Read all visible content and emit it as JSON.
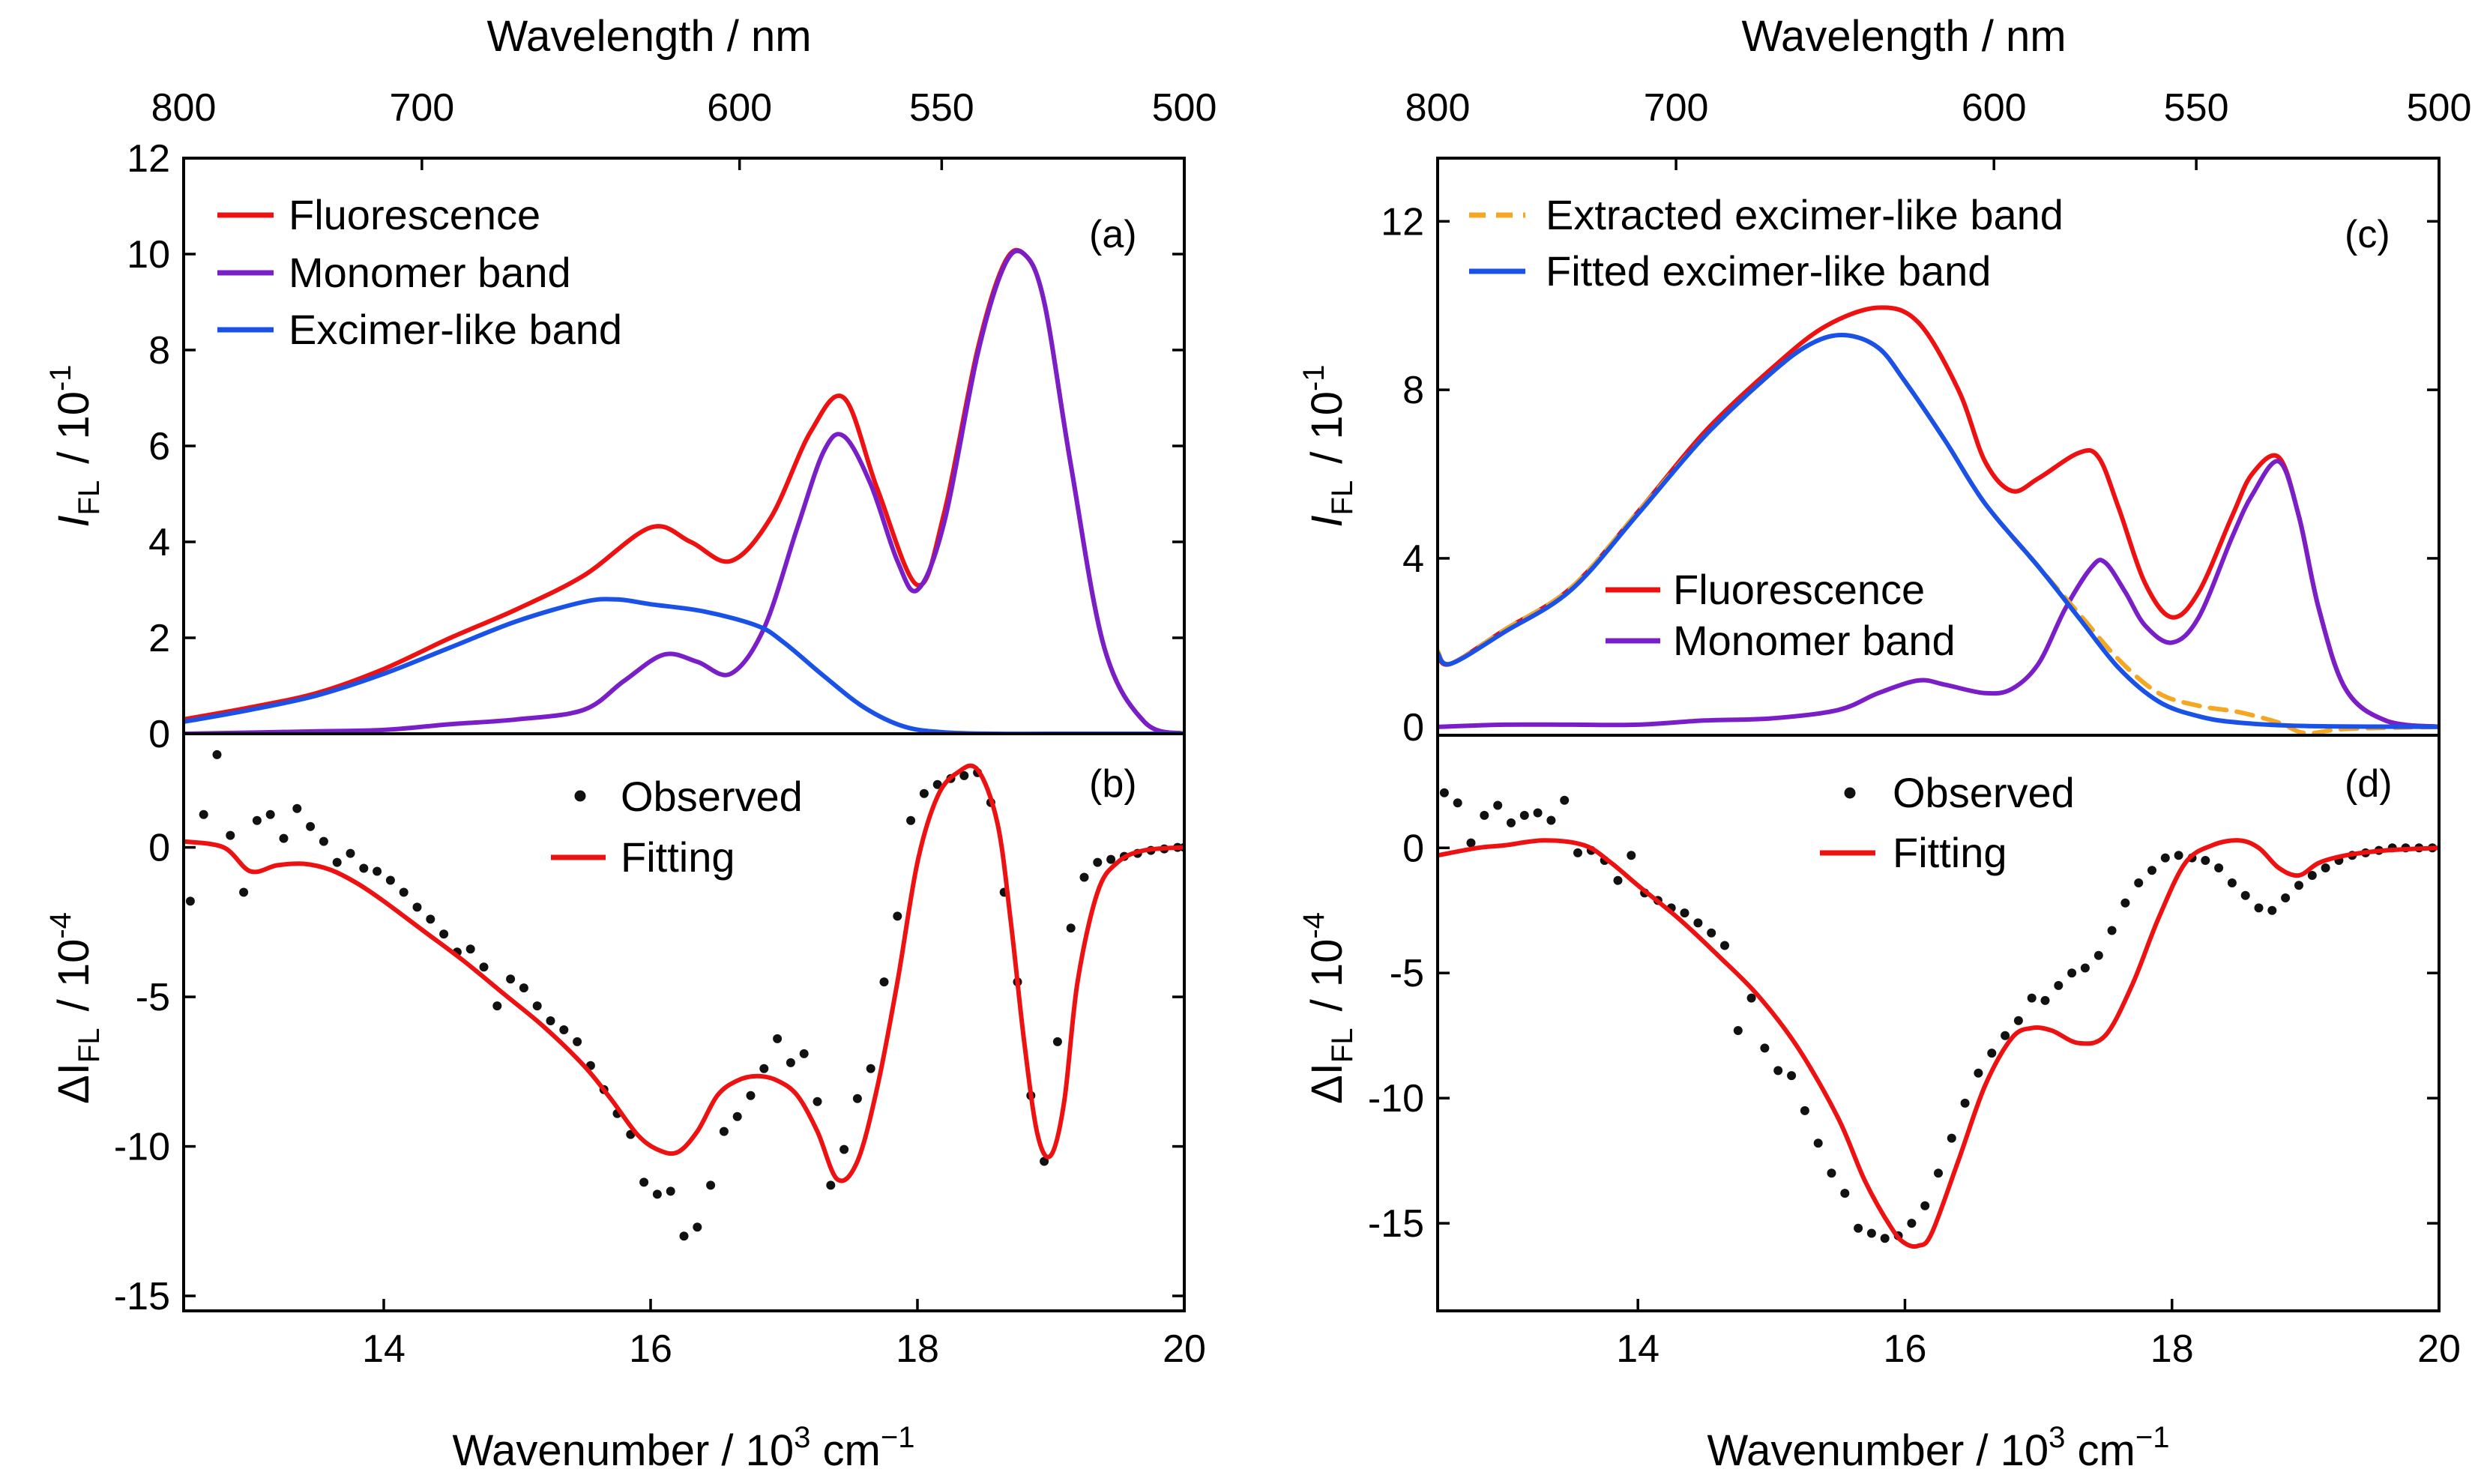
{
  "colors": {
    "fluorescence": "#ee1111",
    "monomer": "#7a1fc8",
    "excimer": "#1a52e8",
    "extracted": "#f5a623",
    "observed": "#111111",
    "fitting": "#ee1111"
  },
  "chart_data": [
    {
      "panel": "a",
      "type": "line",
      "panel_label": "(a)",
      "top_xlabel": "Wavelength / nm",
      "top_ticks": [
        800,
        700,
        600,
        550,
        500
      ],
      "ylabel": "I_FL / 10^-1",
      "ylabel_main": "I",
      "ylabel_sub": "FL",
      "ylabel_unit": "/ 10",
      "ylabel_exp": "-1",
      "xlim": [
        12.5,
        20
      ],
      "ylim": [
        0,
        12
      ],
      "yticks": [
        0,
        2,
        4,
        6,
        8,
        10,
        12
      ],
      "series": [
        {
          "name": "Fluorescence",
          "color": "fluorescence",
          "x": [
            12.5,
            13.0,
            13.5,
            14.0,
            14.5,
            15.0,
            15.5,
            16.0,
            16.3,
            16.6,
            16.9,
            17.2,
            17.45,
            17.7,
            18.0,
            18.2,
            18.45,
            18.65,
            18.8,
            18.95,
            19.15,
            19.4,
            19.7,
            20.0
          ],
          "y": [
            0.3,
            0.55,
            0.85,
            1.35,
            2.0,
            2.6,
            3.3,
            4.3,
            4.0,
            3.6,
            4.5,
            6.3,
            7.0,
            5.1,
            3.1,
            4.6,
            8.0,
            9.8,
            10.0,
            9.0,
            5.6,
            1.8,
            0.25,
            0.0
          ]
        },
        {
          "name": "Monomer band",
          "color": "monomer",
          "x": [
            12.5,
            13.5,
            14.0,
            14.5,
            15.0,
            15.5,
            15.8,
            16.1,
            16.35,
            16.6,
            16.85,
            17.1,
            17.3,
            17.45,
            17.65,
            17.85,
            18.0,
            18.2,
            18.45,
            18.65,
            18.8,
            18.95,
            19.15,
            19.4,
            19.7,
            20.0
          ],
          "y": [
            0.0,
            0.05,
            0.08,
            0.2,
            0.3,
            0.5,
            1.1,
            1.65,
            1.5,
            1.25,
            2.2,
            4.3,
            5.9,
            6.2,
            5.2,
            3.6,
            3.0,
            4.4,
            7.9,
            9.75,
            10.0,
            9.0,
            5.6,
            1.8,
            0.25,
            0.0
          ]
        },
        {
          "name": "Excimer-like band",
          "color": "excimer",
          "x": [
            12.5,
            13.0,
            13.5,
            14.0,
            14.5,
            15.0,
            15.5,
            15.75,
            16.0,
            16.4,
            16.8,
            17.0,
            17.3,
            17.6,
            17.9,
            18.2,
            18.6,
            19.0,
            20.0
          ],
          "y": [
            0.25,
            0.5,
            0.8,
            1.25,
            1.8,
            2.35,
            2.75,
            2.8,
            2.7,
            2.55,
            2.25,
            1.9,
            1.2,
            0.55,
            0.15,
            0.03,
            0.0,
            0.0,
            0.0
          ]
        }
      ]
    },
    {
      "panel": "b",
      "type": "scatter",
      "panel_label": "(b)",
      "xlabel": "Wavenumber / 10^3 cm^-1",
      "xlabel_text": "Wavenumber / 10",
      "xlabel_exp1": "3",
      "xlabel_unit": " cm",
      "xlabel_exp2": "−1",
      "ylabel": "ΔI_FL / 10^-4",
      "ylabel_main": "ΔI",
      "ylabel_sub": "FL",
      "ylabel_unit": "/ 10",
      "ylabel_exp": "-4",
      "xlim": [
        12.5,
        20
      ],
      "ylim": [
        -15.5,
        3.8
      ],
      "xticks": [
        14,
        16,
        18,
        20
      ],
      "yticks": [
        -15,
        -10,
        -5,
        0
      ],
      "series": [
        {
          "name": "Observed",
          "color": "observed",
          "x": [
            12.55,
            12.65,
            12.75,
            12.85,
            12.95,
            13.05,
            13.15,
            13.25,
            13.35,
            13.45,
            13.55,
            13.65,
            13.75,
            13.85,
            13.95,
            14.05,
            14.15,
            14.25,
            14.35,
            14.45,
            14.55,
            14.65,
            14.75,
            14.85,
            14.95,
            15.05,
            15.15,
            15.25,
            15.35,
            15.45,
            15.55,
            15.65,
            15.75,
            15.85,
            15.95,
            16.05,
            16.15,
            16.25,
            16.35,
            16.45,
            16.55,
            16.65,
            16.75,
            16.85,
            16.95,
            17.05,
            17.15,
            17.25,
            17.35,
            17.45,
            17.55,
            17.65,
            17.75,
            17.85,
            17.95,
            18.05,
            18.15,
            18.25,
            18.35,
            18.45,
            18.55,
            18.65,
            18.75,
            18.85,
            18.95,
            19.05,
            19.15,
            19.25,
            19.35,
            19.45,
            19.55,
            19.65,
            19.75,
            19.85,
            19.95,
            20.0
          ],
          "y": [
            -1.8,
            1.1,
            3.1,
            0.4,
            -1.5,
            0.9,
            1.1,
            0.3,
            1.3,
            0.7,
            0.2,
            -0.5,
            -0.2,
            -0.7,
            -0.8,
            -1.1,
            -1.5,
            -2.0,
            -2.4,
            -2.9,
            -3.5,
            -3.4,
            -4.0,
            -5.3,
            -4.4,
            -4.7,
            -5.3,
            -5.8,
            -6.1,
            -6.5,
            -7.3,
            -8.1,
            -8.9,
            -9.6,
            -11.2,
            -11.6,
            -11.5,
            -13.0,
            -12.7,
            -11.3,
            -9.5,
            -9.0,
            -8.3,
            -7.4,
            -6.4,
            -7.2,
            -6.9,
            -8.5,
            -11.3,
            -10.1,
            -8.4,
            -7.4,
            -4.5,
            -2.3,
            0.9,
            1.8,
            2.1,
            2.3,
            2.4,
            2.5,
            1.5,
            -1.5,
            -4.5,
            -8.3,
            -10.5,
            -6.5,
            -2.7,
            -1.0,
            -0.5,
            -0.4,
            -0.3,
            -0.2,
            -0.1,
            -0.05,
            0.0,
            0.0
          ]
        },
        {
          "name": "Fitting",
          "color": "fitting",
          "x": [
            12.5,
            12.8,
            13.0,
            13.2,
            13.4,
            13.6,
            13.8,
            14.0,
            14.3,
            14.6,
            14.9,
            15.2,
            15.5,
            15.7,
            15.9,
            16.05,
            16.2,
            16.35,
            16.5,
            16.65,
            16.8,
            16.95,
            17.1,
            17.25,
            17.4,
            17.55,
            17.7,
            17.85,
            18.0,
            18.15,
            18.3,
            18.45,
            18.6,
            18.7,
            18.8,
            18.9,
            19.0,
            19.1,
            19.2,
            19.35,
            19.5,
            19.7,
            20.0
          ],
          "y": [
            0.2,
            0.0,
            -0.8,
            -0.6,
            -0.55,
            -0.75,
            -1.2,
            -1.8,
            -2.8,
            -3.8,
            -4.9,
            -6.0,
            -7.3,
            -8.4,
            -9.6,
            -10.1,
            -10.2,
            -9.5,
            -8.3,
            -7.8,
            -7.65,
            -7.8,
            -8.3,
            -9.5,
            -11.1,
            -10.5,
            -8.0,
            -4.5,
            -0.5,
            1.7,
            2.5,
            2.6,
            0.8,
            -2.5,
            -6.5,
            -9.6,
            -10.3,
            -8.5,
            -4.5,
            -1.5,
            -0.5,
            -0.1,
            0.0
          ]
        }
      ]
    },
    {
      "panel": "c",
      "type": "line",
      "panel_label": "(c)",
      "top_xlabel": "Wavelength / nm",
      "top_ticks": [
        800,
        700,
        600,
        550,
        500
      ],
      "ylabel": "I_FL / 10^-1",
      "ylabel_main": "I",
      "ylabel_sub": "FL",
      "ylabel_unit": "/ 10",
      "ylabel_exp": "-1",
      "xlim": [
        12.5,
        20
      ],
      "ylim": [
        -0.2,
        13.5
      ],
      "yticks": [
        0,
        4,
        8,
        12
      ],
      "series": [
        {
          "name": "Fluorescence",
          "color": "fluorescence",
          "x": [
            12.5,
            12.6,
            13.0,
            13.5,
            14.0,
            14.5,
            15.0,
            15.4,
            15.8,
            16.1,
            16.4,
            16.6,
            16.8,
            17.0,
            17.3,
            17.45,
            17.6,
            17.8,
            18.0,
            18.2,
            18.45,
            18.6,
            18.8,
            18.95,
            19.1,
            19.3,
            19.6,
            20.0
          ],
          "y": [
            1.7,
            1.5,
            2.3,
            3.3,
            5.1,
            7.0,
            8.5,
            9.5,
            9.95,
            9.6,
            8.0,
            6.3,
            5.6,
            5.9,
            6.5,
            6.4,
            5.2,
            3.4,
            2.6,
            3.2,
            5.0,
            6.0,
            6.4,
            5.0,
            2.8,
            0.9,
            0.15,
            0.0
          ]
        },
        {
          "name": "Monomer band",
          "color": "monomer",
          "x": [
            12.5,
            13.0,
            13.5,
            14.0,
            14.5,
            15.0,
            15.5,
            15.8,
            16.1,
            16.3,
            16.6,
            16.8,
            17.0,
            17.2,
            17.4,
            17.5,
            17.65,
            17.8,
            18.0,
            18.2,
            18.45,
            18.6,
            18.8,
            18.95,
            19.1,
            19.3,
            19.6,
            20.0
          ],
          "y": [
            0.0,
            0.05,
            0.05,
            0.05,
            0.15,
            0.2,
            0.4,
            0.8,
            1.1,
            1.0,
            0.8,
            0.9,
            1.5,
            2.8,
            3.8,
            3.9,
            3.2,
            2.4,
            2.0,
            2.6,
            4.5,
            5.5,
            6.3,
            5.0,
            2.8,
            0.9,
            0.15,
            0.0
          ]
        },
        {
          "name": "Extracted excimer-like band",
          "color": "extracted",
          "dashed": true,
          "x": [
            12.5,
            12.6,
            13.0,
            13.5,
            14.0,
            14.5,
            15.0,
            15.3,
            15.55,
            15.8,
            16.0,
            16.3,
            16.6,
            17.0,
            17.3,
            17.6,
            17.9,
            18.2,
            18.5,
            18.8,
            19.0,
            19.3,
            20.0
          ],
          "y": [
            1.8,
            1.5,
            2.3,
            3.3,
            5.1,
            6.9,
            8.4,
            9.1,
            9.3,
            9.0,
            8.2,
            6.8,
            5.3,
            3.8,
            2.7,
            1.6,
            0.8,
            0.5,
            0.35,
            0.1,
            -0.15,
            -0.05,
            0.0
          ]
        },
        {
          "name": "Fitted excimer-like band",
          "color": "excimer",
          "x": [
            12.5,
            12.6,
            13.0,
            13.5,
            14.0,
            14.5,
            15.0,
            15.3,
            15.55,
            15.8,
            16.0,
            16.3,
            16.6,
            17.0,
            17.3,
            17.6,
            17.9,
            18.2,
            18.5,
            19.0,
            20.0
          ],
          "y": [
            1.75,
            1.5,
            2.25,
            3.25,
            5.05,
            6.9,
            8.4,
            9.1,
            9.3,
            9.0,
            8.2,
            6.8,
            5.3,
            3.8,
            2.6,
            1.4,
            0.6,
            0.25,
            0.1,
            0.02,
            0.0
          ]
        }
      ]
    },
    {
      "panel": "d",
      "type": "scatter",
      "panel_label": "(d)",
      "xlabel": "Wavenumber / 10^3 cm^-1",
      "xlabel_text": "Wavenumber / 10",
      "xlabel_exp1": "3",
      "xlabel_unit": " cm",
      "xlabel_exp2": "−1",
      "ylabel": "ΔI_FL / 10^-4",
      "ylabel_main": "ΔI",
      "ylabel_sub": "FL",
      "ylabel_unit": "/ 10",
      "ylabel_exp": "-4",
      "xlim": [
        12.5,
        20
      ],
      "ylim": [
        -18.5,
        4.5
      ],
      "xticks": [
        14,
        16,
        18,
        20
      ],
      "yticks": [
        -15,
        -10,
        -5,
        0
      ],
      "series": [
        {
          "name": "Observed",
          "color": "observed",
          "x": [
            12.55,
            12.65,
            12.75,
            12.85,
            12.95,
            13.05,
            13.15,
            13.25,
            13.35,
            13.45,
            13.55,
            13.65,
            13.75,
            13.85,
            13.95,
            14.05,
            14.15,
            14.25,
            14.35,
            14.45,
            14.55,
            14.65,
            14.75,
            14.85,
            14.95,
            15.05,
            15.15,
            15.25,
            15.35,
            15.45,
            15.55,
            15.65,
            15.75,
            15.85,
            15.95,
            16.05,
            16.15,
            16.25,
            16.35,
            16.45,
            16.55,
            16.65,
            16.75,
            16.85,
            16.95,
            17.05,
            17.15,
            17.25,
            17.35,
            17.45,
            17.55,
            17.65,
            17.75,
            17.85,
            17.95,
            18.05,
            18.15,
            18.25,
            18.35,
            18.45,
            18.55,
            18.65,
            18.75,
            18.85,
            18.95,
            19.05,
            19.15,
            19.25,
            19.35,
            19.45,
            19.55,
            19.65,
            19.75,
            19.85,
            19.95
          ],
          "y": [
            2.2,
            1.8,
            0.2,
            1.3,
            1.7,
            1.0,
            1.3,
            1.4,
            1.1,
            1.9,
            -0.2,
            -0.1,
            -0.5,
            -1.3,
            -0.3,
            -1.8,
            -2.1,
            -2.4,
            -2.6,
            -3.0,
            -3.4,
            -3.9,
            -7.3,
            -6.0,
            -8.0,
            -8.9,
            -9.1,
            -10.5,
            -11.8,
            -13.0,
            -13.8,
            -15.2,
            -15.4,
            -15.6,
            -15.5,
            -15.0,
            -14.3,
            -13.0,
            -11.6,
            -10.2,
            -9.0,
            -8.2,
            -7.5,
            -6.9,
            -6.0,
            -6.1,
            -5.5,
            -5.0,
            -4.8,
            -4.3,
            -3.3,
            -2.2,
            -1.4,
            -0.9,
            -0.4,
            -0.3,
            -0.4,
            -0.5,
            -0.8,
            -1.4,
            -1.9,
            -2.4,
            -2.5,
            -2.0,
            -1.5,
            -1.1,
            -0.8,
            -0.5,
            -0.3,
            -0.2,
            -0.1,
            0.0,
            0.0,
            0.0,
            0.0
          ]
        },
        {
          "name": "Fitting",
          "color": "fitting",
          "x": [
            12.5,
            12.8,
            13.0,
            13.3,
            13.6,
            13.8,
            14.0,
            14.3,
            14.6,
            14.9,
            15.2,
            15.5,
            15.7,
            15.9,
            16.0,
            16.1,
            16.2,
            16.4,
            16.6,
            16.8,
            16.95,
            17.1,
            17.3,
            17.5,
            17.7,
            17.9,
            18.1,
            18.3,
            18.5,
            18.65,
            18.8,
            18.95,
            19.1,
            19.3,
            19.6,
            20.0
          ],
          "y": [
            -0.3,
            0.0,
            0.1,
            0.3,
            0.1,
            -0.6,
            -1.5,
            -2.8,
            -4.3,
            -5.9,
            -8.0,
            -10.8,
            -13.3,
            -15.2,
            -15.8,
            -15.9,
            -15.4,
            -12.5,
            -9.5,
            -7.6,
            -7.2,
            -7.3,
            -7.8,
            -7.5,
            -5.5,
            -2.8,
            -0.6,
            0.1,
            0.3,
            0.0,
            -0.8,
            -1.1,
            -0.6,
            -0.3,
            -0.1,
            0.0
          ]
        }
      ]
    }
  ],
  "legends": {
    "a": [
      "Fluorescence",
      "Monomer band",
      "Excimer-like band"
    ],
    "b": [
      "Observed",
      "Fitting"
    ],
    "c_top": [
      "Extracted excimer-like band",
      "Fitted excimer-like band"
    ],
    "c_inner": [
      "Fluorescence",
      "Monomer band"
    ],
    "d": [
      "Observed",
      "Fitting"
    ]
  }
}
